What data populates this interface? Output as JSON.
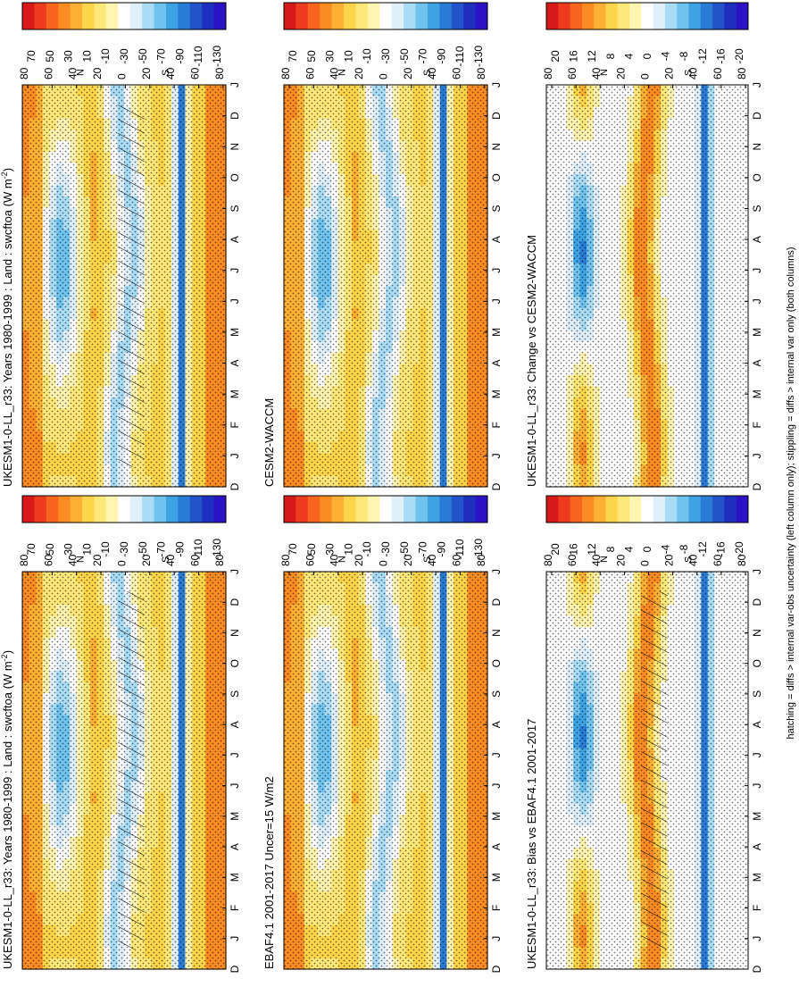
{
  "figure": {
    "footnote": "hatching = diffs > internal var-obs uncertainty (left column only); stippling = diffs > internal var only (both columns)"
  },
  "colors": {
    "field_scale": [
      "#d7191c",
      "#ee3a1e",
      "#f6641e",
      "#fb8c24",
      "#fdb034",
      "#fdd54a",
      "#fee879",
      "#fff4b0",
      "#ffffff",
      "#dff0fb",
      "#a9dcf5",
      "#6fc3ee",
      "#3ea3e3",
      "#2a7bd6",
      "#2253c9",
      "#1e2fc0",
      "#2b12c4"
    ],
    "diff_scale": [
      "#d7191c",
      "#ee3a1e",
      "#f6641e",
      "#fb8c24",
      "#fdb034",
      "#fdd54a",
      "#fee879",
      "#fff4b0",
      "#ffffff",
      "#dff0fb",
      "#a9dcf5",
      "#6fc3ee",
      "#3ea3e3",
      "#2a7bd6",
      "#2253c9",
      "#1e2fc0",
      "#2b12c4"
    ]
  },
  "chart_data": [
    {
      "type": "heatmap",
      "title": "UKESM1-0-LL_r33: Years 1980-1999 : Land : swcftoa (W m",
      "title_sup": "-2",
      "title_end": ")",
      "x": [
        "J",
        "F",
        "M",
        "A",
        "M",
        "J",
        "J",
        "A",
        "S",
        "O",
        "N",
        "D",
        "J"
      ],
      "x_start": "D",
      "y_ticks": [
        "80",
        "60",
        "40",
        "20",
        "0",
        "20",
        "40",
        "60",
        "80"
      ],
      "y_hemisphere_labels": [
        "N",
        "S"
      ],
      "colorbar_ticks": [
        "70",
        "50",
        "30",
        "10",
        "-10",
        "-30",
        "-50",
        "-70",
        "-90",
        "-110",
        "-130"
      ],
      "scale": "field"
    },
    {
      "type": "heatmap",
      "title": "UKESM1-0-LL_r33: Years 1980-1999 : Land : swcftoa (W m",
      "title_sup": "-2",
      "title_end": ")",
      "x": [
        "J",
        "F",
        "M",
        "A",
        "M",
        "J",
        "J",
        "A",
        "S",
        "O",
        "N",
        "D",
        "J"
      ],
      "x_start": "D",
      "y_ticks": [
        "80",
        "60",
        "40",
        "20",
        "0",
        "20",
        "40",
        "60",
        "80"
      ],
      "y_hemisphere_labels": [
        "N",
        "S"
      ],
      "colorbar_ticks": [
        "70",
        "50",
        "30",
        "10",
        "-10",
        "-30",
        "-50",
        "-70",
        "-90",
        "-110",
        "-130"
      ],
      "scale": "field"
    },
    {
      "type": "heatmap",
      "title": "EBAF4.1 2001-2017 Uncer=15 W/m2",
      "x": [
        "J",
        "F",
        "M",
        "A",
        "M",
        "J",
        "J",
        "A",
        "S",
        "O",
        "N",
        "D",
        "J"
      ],
      "x_start": "D",
      "y_ticks": [
        "80",
        "60",
        "40",
        "20",
        "0",
        "20",
        "40",
        "60",
        "80"
      ],
      "y_hemisphere_labels": [
        "N",
        "S"
      ],
      "colorbar_ticks": [
        "70",
        "50",
        "30",
        "10",
        "-10",
        "-30",
        "-50",
        "-70",
        "-90",
        "-110",
        "-130"
      ],
      "scale": "field"
    },
    {
      "type": "heatmap",
      "title": "CESM2-WACCM",
      "x": [
        "J",
        "F",
        "M",
        "A",
        "M",
        "J",
        "J",
        "A",
        "S",
        "O",
        "N",
        "D",
        "J"
      ],
      "x_start": "D",
      "y_ticks": [
        "80",
        "60",
        "40",
        "20",
        "0",
        "20",
        "40",
        "60",
        "80"
      ],
      "y_hemisphere_labels": [
        "N",
        "S"
      ],
      "colorbar_ticks": [
        "70",
        "50",
        "30",
        "10",
        "-10",
        "-30",
        "-50",
        "-70",
        "-90",
        "-110",
        "-130"
      ],
      "scale": "field"
    },
    {
      "type": "heatmap",
      "title": "UKESM1-0-LL_r33: Bias vs EBAF4.1 2001-2017",
      "x": [
        "J",
        "F",
        "M",
        "A",
        "M",
        "J",
        "J",
        "A",
        "S",
        "O",
        "N",
        "D",
        "J"
      ],
      "x_start": "D",
      "y_ticks": [
        "80",
        "60",
        "40",
        "20",
        "0",
        "20",
        "40",
        "60",
        "80"
      ],
      "y_hemisphere_labels": [
        "N",
        "S"
      ],
      "colorbar_ticks": [
        "20",
        "16",
        "12",
        "8",
        "4",
        "0",
        "-4",
        "-8",
        "-12",
        "-16",
        "-20"
      ],
      "scale": "diff"
    },
    {
      "type": "heatmap",
      "title": "UKESM1-0-LL_r33: Change vs CESM2-WACCM",
      "x": [
        "J",
        "F",
        "M",
        "A",
        "M",
        "J",
        "J",
        "A",
        "S",
        "O",
        "N",
        "D",
        "J"
      ],
      "x_start": "D",
      "y_ticks": [
        "80",
        "60",
        "40",
        "20",
        "0",
        "20",
        "40",
        "60",
        "80"
      ],
      "y_hemisphere_labels": [
        "N",
        "S"
      ],
      "colorbar_ticks": [
        "20",
        "16",
        "12",
        "8",
        "4",
        "0",
        "-4",
        "-8",
        "-12",
        "-16",
        "-20"
      ],
      "scale": "diff"
    }
  ]
}
